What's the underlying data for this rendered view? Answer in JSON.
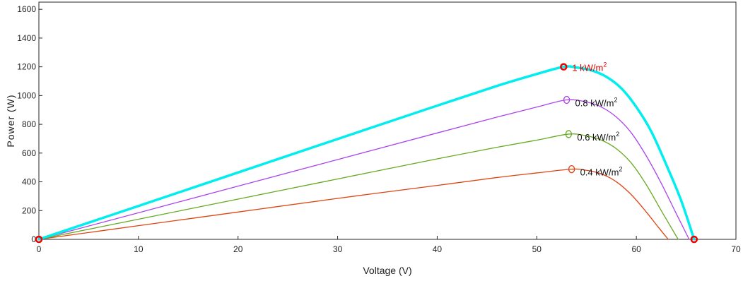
{
  "chart_data": {
    "type": "line",
    "xlabel": "Voltage (V)",
    "ylabel": "Power (W)",
    "xlim": [
      0,
      70
    ],
    "ylim": [
      0,
      1650
    ],
    "xticks": [
      0,
      10,
      20,
      30,
      40,
      50,
      60,
      70
    ],
    "yticks": [
      0,
      200,
      400,
      600,
      800,
      1000,
      1200,
      1400,
      1600
    ],
    "grid": false,
    "series": [
      {
        "name": "1 kW/m2",
        "label_base": "1 kW/m",
        "label_sup": "2",
        "color": "#00eeee",
        "label_color": "#dd0000",
        "x": [
          0,
          10,
          20,
          30,
          40,
          46,
          50,
          52.7,
          54,
          55.5,
          57,
          58.5,
          60,
          61.5,
          63,
          64.5,
          65.8
        ],
        "y": [
          0,
          232,
          465,
          698,
          930,
          1067,
          1150,
          1200,
          1195,
          1175,
          1130,
          1050,
          920,
          750,
          520,
          270,
          0
        ],
        "mpp": [
          52.7,
          1200
        ]
      },
      {
        "name": "0.8 kW/m2",
        "label_base": "0.8 kW/m",
        "label_sup": "2",
        "color": "#aa44ee",
        "label_color": "#111111",
        "x": [
          0,
          10,
          20,
          30,
          40,
          46,
          50,
          53,
          55,
          56.5,
          58,
          59.5,
          61,
          62.5,
          64,
          65.3
        ],
        "y": [
          0,
          185,
          370,
          555,
          740,
          850,
          920,
          970,
          955,
          920,
          850,
          740,
          580,
          390,
          180,
          0
        ],
        "mpp": [
          53,
          970
        ]
      },
      {
        "name": "0.6 kW/m2",
        "label_base": "0.6 kW/m",
        "label_sup": "2",
        "color": "#66aa22",
        "label_color": "#111111",
        "x": [
          0,
          10,
          20,
          30,
          40,
          46,
          50,
          53.2,
          55,
          56.5,
          58,
          59.5,
          61,
          62.5,
          64.2
        ],
        "y": [
          0,
          140,
          280,
          420,
          560,
          640,
          690,
          732,
          720,
          690,
          630,
          530,
          380,
          200,
          0
        ],
        "mpp": [
          53.2,
          732
        ]
      },
      {
        "name": "0.4 kW/m2",
        "label_base": "0.4 kW/m",
        "label_sup": "2",
        "color": "#dd4411",
        "label_color": "#111111",
        "x": [
          0,
          10,
          20,
          30,
          40,
          46,
          50,
          53.5,
          55,
          56.5,
          58,
          59.5,
          61,
          62.2,
          63.2
        ],
        "y": [
          0,
          95,
          190,
          285,
          375,
          430,
          462,
          488,
          480,
          455,
          400,
          310,
          190,
          85,
          0
        ],
        "mpp": [
          53.5,
          488
        ]
      }
    ],
    "markers": [
      {
        "x": 0,
        "y": 0
      },
      {
        "x": 52.7,
        "y": 1200
      },
      {
        "x": 65.8,
        "y": 0
      }
    ]
  }
}
